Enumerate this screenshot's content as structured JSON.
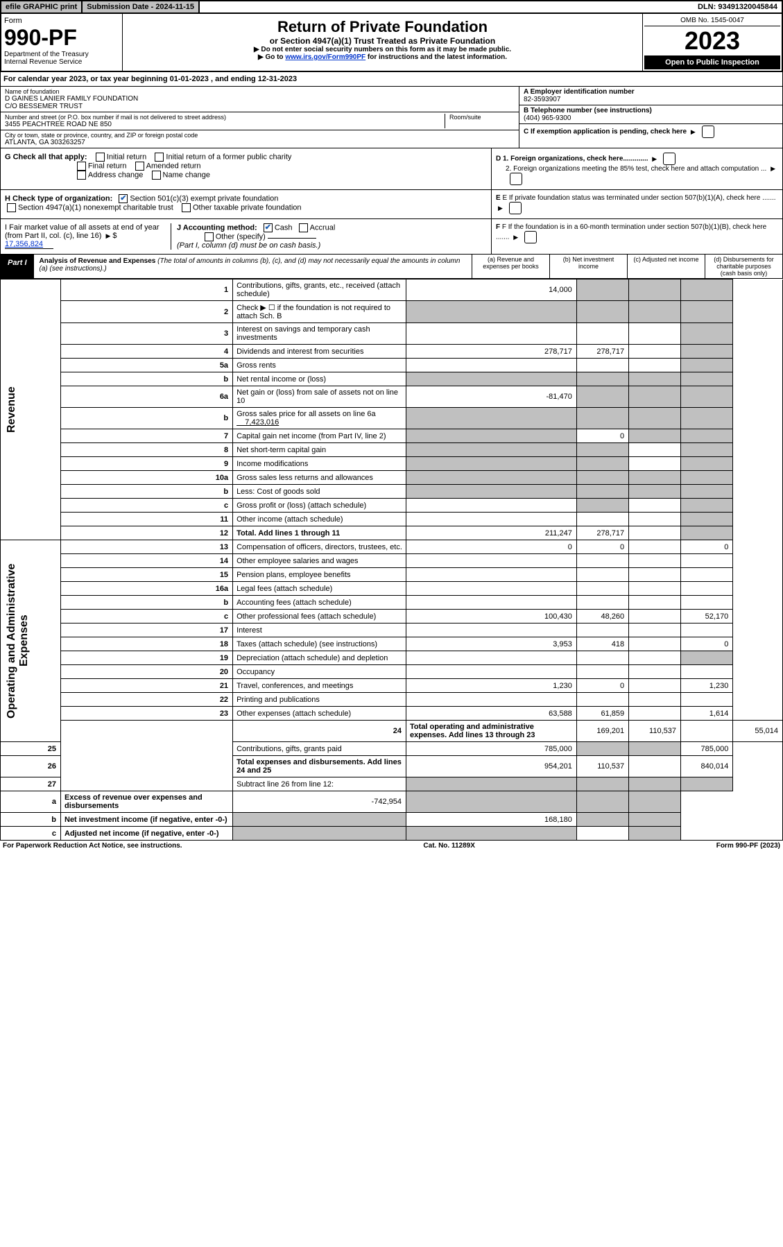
{
  "colors": {
    "header_grey": "#c0c0c0",
    "link_blue": "#0033cc",
    "check_blue": "#1e5fb3"
  },
  "top": {
    "efile": "efile GRAPHIC print",
    "sub_label": "Submission Date - 2024-11-15",
    "dln": "DLN: 93491320045844"
  },
  "header": {
    "form_label": "Form",
    "form_no": "990-PF",
    "dept1": "Department of the Treasury",
    "dept2": "Internal Revenue Service",
    "title": "Return of Private Foundation",
    "sub": "or Section 4947(a)(1) Trust Treated as Private Foundation",
    "inst1": "▶ Do not enter social security numbers on this form as it may be made public.",
    "inst2_pre": "▶ Go to ",
    "inst2_link": "www.irs.gov/Form990PF",
    "inst2_post": " for instructions and the latest information.",
    "omb": "OMB No. 1545-0047",
    "year": "2023",
    "open": "Open to Public Inspection"
  },
  "cal": "For calendar year 2023, or tax year beginning 01-01-2023                    , and ending 12-31-2023",
  "name": {
    "label": "Name of foundation",
    "line1": "D GAINES LANIER FAMILY FOUNDATION",
    "line2": "C/O BESSEMER TRUST",
    "addr_label": "Number and street (or P.O. box number if mail is not delivered to street address)",
    "addr": "3455 PEACHTREE ROAD NE 850",
    "room_label": "Room/suite",
    "city_label": "City or town, state or province, country, and ZIP or foreign postal code",
    "city": "ATLANTA, GA  303263257"
  },
  "ein": {
    "label": "A Employer identification number",
    "val": "82-3593907"
  },
  "tel": {
    "label": "B Telephone number (see instructions)",
    "val": "(404) 965-9300"
  },
  "c": "C If exemption application is pending, check here",
  "d1": "D 1. Foreign organizations, check here.............",
  "d2": "2. Foreign organizations meeting the 85% test, check here and attach computation ...",
  "e": "E If private foundation status was terminated under section 507(b)(1)(A), check here .......",
  "f": "F If the foundation is in a 60-month termination under section 507(b)(1)(B), check here .......",
  "g": {
    "label": "G Check all that apply:",
    "opts": [
      "Initial return",
      "Initial return of a former public charity",
      "Final return",
      "Amended return",
      "Address change",
      "Name change"
    ]
  },
  "h": {
    "label": "H Check type of organization:",
    "opt1": "Section 501(c)(3) exempt private foundation",
    "opt2": "Section 4947(a)(1) nonexempt charitable trust",
    "opt3": "Other taxable private foundation"
  },
  "i": {
    "label": "I Fair market value of all assets at end of year (from Part II, col. (c), line 16)",
    "val": "17,356,824"
  },
  "j": {
    "label": "J Accounting method:",
    "cash": "Cash",
    "accrual": "Accrual",
    "other": "Other (specify)",
    "note": "(Part I, column (d) must be on cash basis.)"
  },
  "part1": {
    "label": "Part I",
    "title": "Analysis of Revenue and Expenses",
    "note": "(The total of amounts in columns (b), (c), and (d) may not necessarily equal the amounts in column (a) (see instructions).)",
    "col_a": "(a)  Revenue and expenses per books",
    "col_b": "(b)  Net investment income",
    "col_c": "(c)  Adjusted net income",
    "col_d": "(d)  Disbursements for charitable purposes (cash basis only)"
  },
  "rot": {
    "rev": "Revenue",
    "exp": "Operating and Administrative Expenses"
  },
  "rows": {
    "r1": {
      "n": "1",
      "d": "Contributions, gifts, grants, etc., received (attach schedule)",
      "a": "14,000"
    },
    "r2": {
      "n": "2",
      "d": "Check ▶ ☐ if the foundation is not required to attach Sch. B"
    },
    "r3": {
      "n": "3",
      "d": "Interest on savings and temporary cash investments"
    },
    "r4": {
      "n": "4",
      "d": "Dividends and interest from securities",
      "a": "278,717",
      "b": "278,717"
    },
    "r5a": {
      "n": "5a",
      "d": "Gross rents"
    },
    "r5b": {
      "n": "b",
      "d": "Net rental income or (loss)"
    },
    "r6a": {
      "n": "6a",
      "d": "Net gain or (loss) from sale of assets not on line 10",
      "a": "-81,470"
    },
    "r6b": {
      "n": "b",
      "d": "Gross sales price for all assets on line 6a",
      "inline": "7,423,016"
    },
    "r7": {
      "n": "7",
      "d": "Capital gain net income (from Part IV, line 2)",
      "b": "0"
    },
    "r8": {
      "n": "8",
      "d": "Net short-term capital gain"
    },
    "r9": {
      "n": "9",
      "d": "Income modifications"
    },
    "r10a": {
      "n": "10a",
      "d": "Gross sales less returns and allowances"
    },
    "r10b": {
      "n": "b",
      "d": "Less: Cost of goods sold"
    },
    "r10c": {
      "n": "c",
      "d": "Gross profit or (loss) (attach schedule)"
    },
    "r11": {
      "n": "11",
      "d": "Other income (attach schedule)"
    },
    "r12": {
      "n": "12",
      "d": "Total. Add lines 1 through 11",
      "a": "211,247",
      "b": "278,717"
    },
    "r13": {
      "n": "13",
      "d": "Compensation of officers, directors, trustees, etc.",
      "a": "0",
      "b": "0",
      "dd": "0"
    },
    "r14": {
      "n": "14",
      "d": "Other employee salaries and wages"
    },
    "r15": {
      "n": "15",
      "d": "Pension plans, employee benefits"
    },
    "r16a": {
      "n": "16a",
      "d": "Legal fees (attach schedule)"
    },
    "r16b": {
      "n": "b",
      "d": "Accounting fees (attach schedule)"
    },
    "r16c": {
      "n": "c",
      "d": "Other professional fees (attach schedule)",
      "a": "100,430",
      "b": "48,260",
      "dd": "52,170"
    },
    "r17": {
      "n": "17",
      "d": "Interest"
    },
    "r18": {
      "n": "18",
      "d": "Taxes (attach schedule) (see instructions)",
      "a": "3,953",
      "b": "418",
      "dd": "0"
    },
    "r19": {
      "n": "19",
      "d": "Depreciation (attach schedule) and depletion"
    },
    "r20": {
      "n": "20",
      "d": "Occupancy"
    },
    "r21": {
      "n": "21",
      "d": "Travel, conferences, and meetings",
      "a": "1,230",
      "b": "0",
      "dd": "1,230"
    },
    "r22": {
      "n": "22",
      "d": "Printing and publications"
    },
    "r23": {
      "n": "23",
      "d": "Other expenses (attach schedule)",
      "a": "63,588",
      "b": "61,859",
      "dd": "1,614"
    },
    "r24": {
      "n": "24",
      "d": "Total operating and administrative expenses. Add lines 13 through 23",
      "a": "169,201",
      "b": "110,537",
      "dd": "55,014"
    },
    "r25": {
      "n": "25",
      "d": "Contributions, gifts, grants paid",
      "a": "785,000",
      "dd": "785,000"
    },
    "r26": {
      "n": "26",
      "d": "Total expenses and disbursements. Add lines 24 and 25",
      "a": "954,201",
      "b": "110,537",
      "dd": "840,014"
    },
    "r27": {
      "n": "27",
      "d": "Subtract line 26 from line 12:"
    },
    "r27a": {
      "n": "a",
      "d": "Excess of revenue over expenses and disbursements",
      "a": "-742,954"
    },
    "r27b": {
      "n": "b",
      "d": "Net investment income (if negative, enter -0-)",
      "b": "168,180"
    },
    "r27c": {
      "n": "c",
      "d": "Adjusted net income (if negative, enter -0-)"
    }
  },
  "footer": {
    "left": "For Paperwork Reduction Act Notice, see instructions.",
    "mid": "Cat. No. 11289X",
    "right": "Form 990-PF (2023)"
  }
}
